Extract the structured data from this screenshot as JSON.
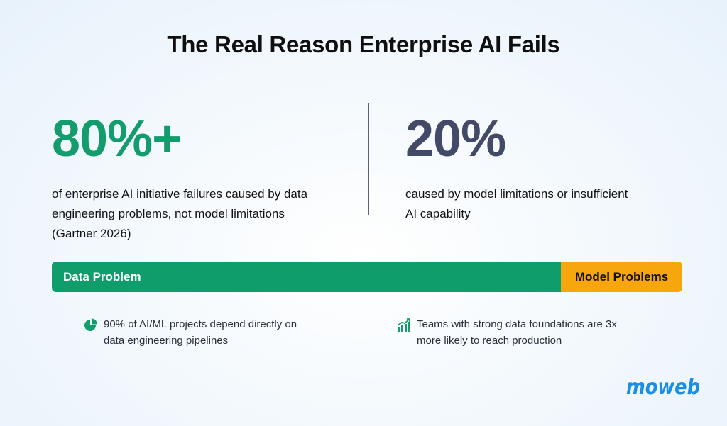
{
  "title": "The Real Reason Enterprise AI Fails",
  "left_stat": {
    "value": "80%+",
    "description_lines": [
      "of enterprise AI initiative failures caused by data",
      "engineering problems, not model limitations",
      "(Gartner 2026)"
    ]
  },
  "right_stat": {
    "value": "20%",
    "description_lines": [
      "caused by model limitations or insufficient",
      "AI capability"
    ]
  },
  "bar": {
    "segments": [
      {
        "label": "Data Problem",
        "share_percent": 80,
        "color": "#0f9e6b"
      },
      {
        "label": "Model Problems",
        "share_percent": 20,
        "color": "#f7a60d"
      }
    ]
  },
  "notes": [
    {
      "icon": "pie-chart-icon",
      "lines": [
        "90% of AI/ML projects depend directly on",
        "data engineering pipelines"
      ]
    },
    {
      "icon": "bar-growth-icon",
      "lines": [
        "Teams with strong data foundations are 3x",
        "more likely to reach production"
      ]
    }
  ],
  "logo": {
    "text": "moweb"
  },
  "colors": {
    "accent_green": "#139c6c",
    "slate": "#434a67",
    "orange": "#f7a60d",
    "logo_blue": "#1b8fe6"
  }
}
